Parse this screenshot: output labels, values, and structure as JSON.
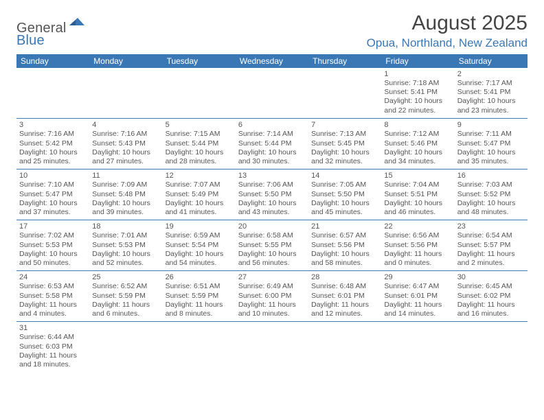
{
  "logo": {
    "general": "General",
    "blue": "Blue"
  },
  "title": "August 2025",
  "location": "Opua, Northland, New Zealand",
  "colors": {
    "header_bg": "#3a78b5",
    "header_text": "#ffffff",
    "border": "#3a78b5",
    "body_text": "#555555",
    "title_text": "#444444",
    "location_text": "#3a78b5",
    "logo_gray": "#555555",
    "logo_blue": "#3a78b5",
    "background": "#ffffff"
  },
  "day_headers": [
    "Sunday",
    "Monday",
    "Tuesday",
    "Wednesday",
    "Thursday",
    "Friday",
    "Saturday"
  ],
  "weeks": [
    [
      null,
      null,
      null,
      null,
      null,
      {
        "n": "1",
        "sr": "Sunrise: 7:18 AM",
        "ss": "Sunset: 5:41 PM",
        "dl": "Daylight: 10 hours and 22 minutes."
      },
      {
        "n": "2",
        "sr": "Sunrise: 7:17 AM",
        "ss": "Sunset: 5:41 PM",
        "dl": "Daylight: 10 hours and 23 minutes."
      }
    ],
    [
      {
        "n": "3",
        "sr": "Sunrise: 7:16 AM",
        "ss": "Sunset: 5:42 PM",
        "dl": "Daylight: 10 hours and 25 minutes."
      },
      {
        "n": "4",
        "sr": "Sunrise: 7:16 AM",
        "ss": "Sunset: 5:43 PM",
        "dl": "Daylight: 10 hours and 27 minutes."
      },
      {
        "n": "5",
        "sr": "Sunrise: 7:15 AM",
        "ss": "Sunset: 5:44 PM",
        "dl": "Daylight: 10 hours and 28 minutes."
      },
      {
        "n": "6",
        "sr": "Sunrise: 7:14 AM",
        "ss": "Sunset: 5:44 PM",
        "dl": "Daylight: 10 hours and 30 minutes."
      },
      {
        "n": "7",
        "sr": "Sunrise: 7:13 AM",
        "ss": "Sunset: 5:45 PM",
        "dl": "Daylight: 10 hours and 32 minutes."
      },
      {
        "n": "8",
        "sr": "Sunrise: 7:12 AM",
        "ss": "Sunset: 5:46 PM",
        "dl": "Daylight: 10 hours and 34 minutes."
      },
      {
        "n": "9",
        "sr": "Sunrise: 7:11 AM",
        "ss": "Sunset: 5:47 PM",
        "dl": "Daylight: 10 hours and 35 minutes."
      }
    ],
    [
      {
        "n": "10",
        "sr": "Sunrise: 7:10 AM",
        "ss": "Sunset: 5:47 PM",
        "dl": "Daylight: 10 hours and 37 minutes."
      },
      {
        "n": "11",
        "sr": "Sunrise: 7:09 AM",
        "ss": "Sunset: 5:48 PM",
        "dl": "Daylight: 10 hours and 39 minutes."
      },
      {
        "n": "12",
        "sr": "Sunrise: 7:07 AM",
        "ss": "Sunset: 5:49 PM",
        "dl": "Daylight: 10 hours and 41 minutes."
      },
      {
        "n": "13",
        "sr": "Sunrise: 7:06 AM",
        "ss": "Sunset: 5:50 PM",
        "dl": "Daylight: 10 hours and 43 minutes."
      },
      {
        "n": "14",
        "sr": "Sunrise: 7:05 AM",
        "ss": "Sunset: 5:50 PM",
        "dl": "Daylight: 10 hours and 45 minutes."
      },
      {
        "n": "15",
        "sr": "Sunrise: 7:04 AM",
        "ss": "Sunset: 5:51 PM",
        "dl": "Daylight: 10 hours and 46 minutes."
      },
      {
        "n": "16",
        "sr": "Sunrise: 7:03 AM",
        "ss": "Sunset: 5:52 PM",
        "dl": "Daylight: 10 hours and 48 minutes."
      }
    ],
    [
      {
        "n": "17",
        "sr": "Sunrise: 7:02 AM",
        "ss": "Sunset: 5:53 PM",
        "dl": "Daylight: 10 hours and 50 minutes."
      },
      {
        "n": "18",
        "sr": "Sunrise: 7:01 AM",
        "ss": "Sunset: 5:53 PM",
        "dl": "Daylight: 10 hours and 52 minutes."
      },
      {
        "n": "19",
        "sr": "Sunrise: 6:59 AM",
        "ss": "Sunset: 5:54 PM",
        "dl": "Daylight: 10 hours and 54 minutes."
      },
      {
        "n": "20",
        "sr": "Sunrise: 6:58 AM",
        "ss": "Sunset: 5:55 PM",
        "dl": "Daylight: 10 hours and 56 minutes."
      },
      {
        "n": "21",
        "sr": "Sunrise: 6:57 AM",
        "ss": "Sunset: 5:56 PM",
        "dl": "Daylight: 10 hours and 58 minutes."
      },
      {
        "n": "22",
        "sr": "Sunrise: 6:56 AM",
        "ss": "Sunset: 5:56 PM",
        "dl": "Daylight: 11 hours and 0 minutes."
      },
      {
        "n": "23",
        "sr": "Sunrise: 6:54 AM",
        "ss": "Sunset: 5:57 PM",
        "dl": "Daylight: 11 hours and 2 minutes."
      }
    ],
    [
      {
        "n": "24",
        "sr": "Sunrise: 6:53 AM",
        "ss": "Sunset: 5:58 PM",
        "dl": "Daylight: 11 hours and 4 minutes."
      },
      {
        "n": "25",
        "sr": "Sunrise: 6:52 AM",
        "ss": "Sunset: 5:59 PM",
        "dl": "Daylight: 11 hours and 6 minutes."
      },
      {
        "n": "26",
        "sr": "Sunrise: 6:51 AM",
        "ss": "Sunset: 5:59 PM",
        "dl": "Daylight: 11 hours and 8 minutes."
      },
      {
        "n": "27",
        "sr": "Sunrise: 6:49 AM",
        "ss": "Sunset: 6:00 PM",
        "dl": "Daylight: 11 hours and 10 minutes."
      },
      {
        "n": "28",
        "sr": "Sunrise: 6:48 AM",
        "ss": "Sunset: 6:01 PM",
        "dl": "Daylight: 11 hours and 12 minutes."
      },
      {
        "n": "29",
        "sr": "Sunrise: 6:47 AM",
        "ss": "Sunset: 6:01 PM",
        "dl": "Daylight: 11 hours and 14 minutes."
      },
      {
        "n": "30",
        "sr": "Sunrise: 6:45 AM",
        "ss": "Sunset: 6:02 PM",
        "dl": "Daylight: 11 hours and 16 minutes."
      }
    ],
    [
      {
        "n": "31",
        "sr": "Sunrise: 6:44 AM",
        "ss": "Sunset: 6:03 PM",
        "dl": "Daylight: 11 hours and 18 minutes."
      },
      null,
      null,
      null,
      null,
      null,
      null
    ]
  ]
}
